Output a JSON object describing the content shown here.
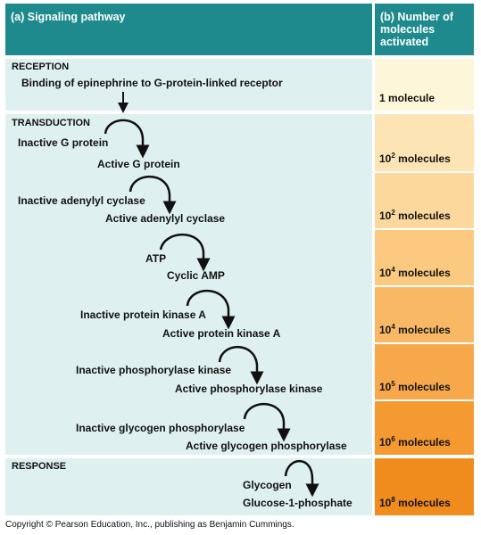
{
  "header": {
    "left_title": "(a) Signaling pathway",
    "right_title": "(b) Number of\nmolecules\nactivated"
  },
  "sections": {
    "reception": "RECEPTION",
    "transduction": "TRANSDUCTION",
    "response": "RESPONSE"
  },
  "reception_text": "Binding of epinephrine to G-protein-linked receptor",
  "steps": [
    {
      "from": "Inactive G protein",
      "to": "Active G protein"
    },
    {
      "from": "Inactive adenylyl cyclase",
      "to": "Active adenylyl cyclase"
    },
    {
      "from": "ATP",
      "to": "Cyclic AMP"
    },
    {
      "from": "Inactive protein kinase A",
      "to": "Active protein kinase A"
    },
    {
      "from": "Inactive phosphorylase kinase",
      "to": "Active phosphorylase kinase"
    },
    {
      "from": "Inactive glycogen phosphorylase",
      "to": "Active glycogen phosphorylase"
    },
    {
      "from": "Glycogen",
      "to": "Glucose-1-phosphate"
    }
  ],
  "counts": [
    {
      "base": "1 molecule",
      "exp": ""
    },
    {
      "base": "10",
      "exp": "2",
      "unit": " molecules"
    },
    {
      "base": "10",
      "exp": "2",
      "unit": " molecules"
    },
    {
      "base": "10",
      "exp": "4",
      "unit": " molecules"
    },
    {
      "base": "10",
      "exp": "4",
      "unit": " molecules"
    },
    {
      "base": "10",
      "exp": "5",
      "unit": " molecules"
    },
    {
      "base": "10",
      "exp": "6",
      "unit": " molecules"
    },
    {
      "base": "10",
      "exp": "8",
      "unit": " molecules"
    }
  ],
  "colors": {
    "header": "#1e8a8d",
    "panel": "#dff0f1",
    "count_shades": [
      "#fdf6d8",
      "#fde4b4",
      "#fcd89c",
      "#fbc97f",
      "#f9b964",
      "#f7a84a",
      "#f49a30",
      "#f08c1e"
    ]
  },
  "footer": "Copyright © Pearson Education, Inc., publishing as Benjamin Cummings."
}
